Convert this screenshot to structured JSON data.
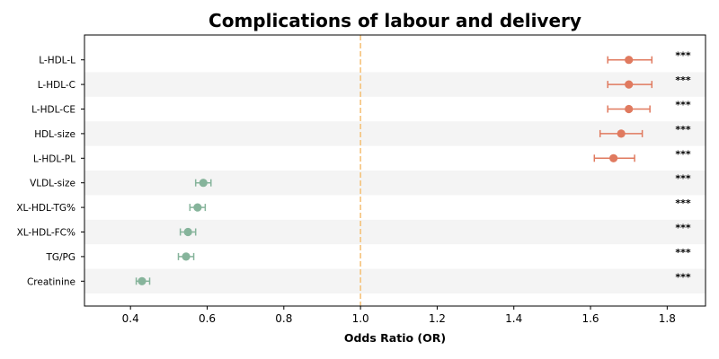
{
  "chart_data": {
    "type": "forest",
    "title": "Complications of labour and delivery",
    "xlabel": "Odds Ratio (OR)",
    "xlim": [
      0.28,
      1.9
    ],
    "xticks": [
      0.4,
      0.6,
      0.8,
      1.0,
      1.2,
      1.4,
      1.6,
      1.8
    ],
    "xtick_labels": [
      "0.4",
      "0.6",
      "0.8",
      "1.0",
      "1.2",
      "1.4",
      "1.6",
      "1.8"
    ],
    "reference_line": 1.0,
    "reference_color": "#f5c27a",
    "increase_color": "#e07a5f",
    "decrease_color": "#86b49b",
    "stripe_color": "#f4f4f4",
    "rows": [
      {
        "label": "L-HDL-L",
        "or": 1.7,
        "lo": 1.645,
        "hi": 1.76,
        "sig": "***"
      },
      {
        "label": "L-HDL-C",
        "or": 1.7,
        "lo": 1.645,
        "hi": 1.76,
        "sig": "***"
      },
      {
        "label": "L-HDL-CE",
        "or": 1.7,
        "lo": 1.645,
        "hi": 1.755,
        "sig": "***"
      },
      {
        "label": "HDL-size",
        "or": 1.68,
        "lo": 1.625,
        "hi": 1.735,
        "sig": "***"
      },
      {
        "label": "L-HDL-PL",
        "or": 1.66,
        "lo": 1.61,
        "hi": 1.715,
        "sig": "***"
      },
      {
        "label": "VLDL-size",
        "or": 0.59,
        "lo": 0.57,
        "hi": 0.61,
        "sig": "***"
      },
      {
        "label": "XL-HDL-TG%",
        "or": 0.575,
        "lo": 0.555,
        "hi": 0.595,
        "sig": "***"
      },
      {
        "label": "XL-HDL-FC%",
        "or": 0.55,
        "lo": 0.53,
        "hi": 0.57,
        "sig": "***"
      },
      {
        "label": "TG/PG",
        "or": 0.545,
        "lo": 0.525,
        "hi": 0.565,
        "sig": "***"
      },
      {
        "label": "Creatinine",
        "or": 0.43,
        "lo": 0.415,
        "hi": 0.45,
        "sig": "***"
      }
    ]
  }
}
